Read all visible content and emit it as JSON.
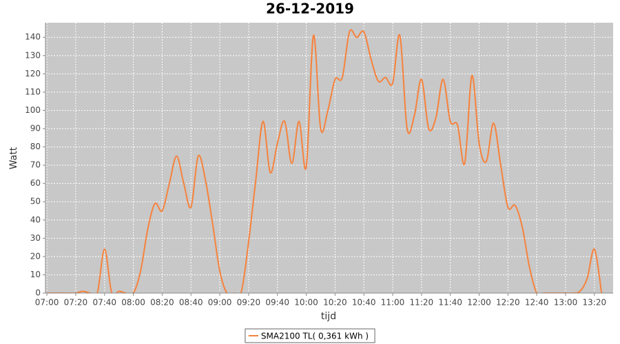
{
  "chart_data": {
    "type": "line",
    "title": "26-12-2019",
    "x_label": "tijd",
    "y_label": "Watt",
    "x": [
      "07:00",
      "07:05",
      "07:10",
      "07:15",
      "07:20",
      "07:25",
      "07:30",
      "07:35",
      "07:40",
      "07:45",
      "07:50",
      "07:55",
      "08:00",
      "08:05",
      "08:10",
      "08:15",
      "08:20",
      "08:25",
      "08:30",
      "08:35",
      "08:40",
      "08:45",
      "08:50",
      "08:55",
      "09:00",
      "09:05",
      "09:10",
      "09:15",
      "09:20",
      "09:25",
      "09:30",
      "09:35",
      "09:40",
      "09:45",
      "09:50",
      "09:55",
      "10:00",
      "10:05",
      "10:10",
      "10:15",
      "10:20",
      "10:25",
      "10:30",
      "10:35",
      "10:40",
      "10:45",
      "10:50",
      "10:55",
      "11:00",
      "11:05",
      "11:10",
      "11:15",
      "11:20",
      "11:25",
      "11:30",
      "11:35",
      "11:40",
      "11:45",
      "11:50",
      "11:55",
      "12:00",
      "12:05",
      "12:10",
      "12:15",
      "12:20",
      "12:25",
      "12:30",
      "12:35",
      "12:40",
      "12:45",
      "12:50",
      "12:55",
      "13:00",
      "13:05",
      "13:10",
      "13:15",
      "13:20",
      "13:25"
    ],
    "series": [
      {
        "name": "SMA2100 TL( 0,361 kWh )",
        "color": "#f7823c",
        "values": [
          0,
          0,
          0,
          0,
          0,
          1,
          0,
          0,
          24,
          0,
          1,
          0,
          0,
          12,
          35,
          49,
          45,
          60,
          75,
          60,
          47,
          75,
          62,
          38,
          12,
          0,
          0,
          1,
          28,
          62,
          94,
          66,
          82,
          94,
          71,
          94,
          69,
          141,
          90,
          100,
          117,
          118,
          143,
          140,
          143,
          128,
          116,
          118,
          115,
          141,
          90,
          97,
          117,
          90,
          96,
          117,
          94,
          92,
          71,
          119,
          82,
          72,
          93,
          70,
          47,
          48,
          36,
          14,
          0,
          0,
          0,
          0,
          0,
          0,
          1,
          8,
          24,
          0
        ]
      }
    ],
    "xlim": [
      "06:59",
      "13:33"
    ],
    "xticks": [
      "07:00",
      "07:20",
      "07:40",
      "08:00",
      "08:20",
      "08:40",
      "09:00",
      "09:20",
      "09:40",
      "10:00",
      "10:20",
      "10:40",
      "11:00",
      "11:20",
      "11:40",
      "12:00",
      "12:20",
      "12:40",
      "13:00",
      "13:20"
    ],
    "ylim": [
      0,
      148
    ],
    "yticks": [
      0,
      10,
      20,
      30,
      40,
      50,
      60,
      70,
      80,
      90,
      100,
      110,
      120,
      130,
      140
    ],
    "grid": true,
    "legend": "bottom"
  }
}
